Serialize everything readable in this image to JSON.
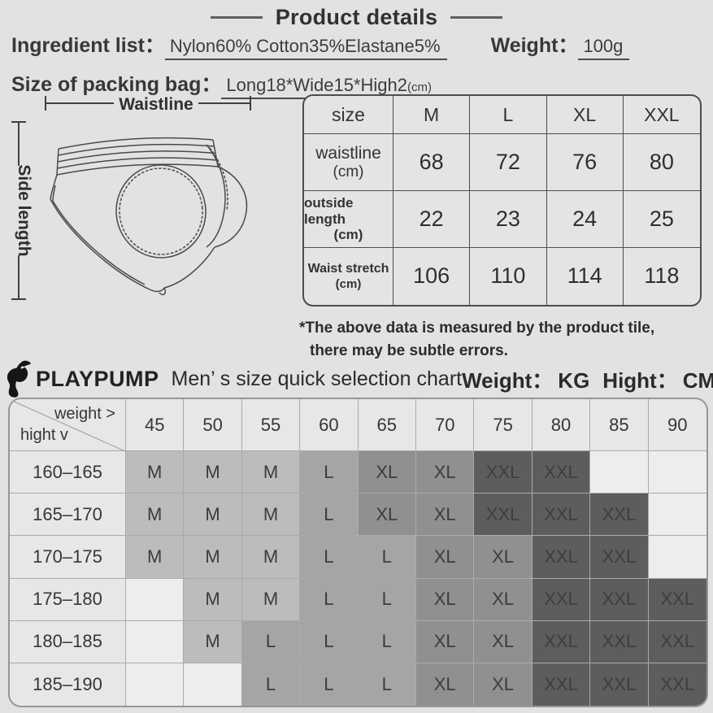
{
  "header": {
    "title": "Product details",
    "ingredient_label": "Ingredient list：",
    "ingredient_value": "Nylon60% Cotton35%Elastane5%",
    "weight_label": "Weight：",
    "weight_value": "100g",
    "packing_label": "Size of packing bag：",
    "packing_value": "Long18*Wide15*High2",
    "packing_unit": "(cm)"
  },
  "diagram": {
    "waistline_label": "Waistline",
    "side_length_label": "Side length"
  },
  "size_table": {
    "corner": "size",
    "columns": [
      "M",
      "L",
      "XL",
      "XXL"
    ],
    "rows": [
      {
        "label": "waistline",
        "unit": "(cm)",
        "values": [
          "68",
          "72",
          "76",
          "80"
        ]
      },
      {
        "label": "outside length",
        "unit": "(cm)",
        "values": [
          "22",
          "23",
          "24",
          "25"
        ]
      },
      {
        "label": "Waist stretch",
        "unit": "(cm)",
        "values": [
          "106",
          "110",
          "114",
          "118"
        ]
      }
    ]
  },
  "note": {
    "line1": "*The above data is measured by the product tile,",
    "line2": "there may be subtle errors."
  },
  "selection_header": {
    "logo_icon": "mascot-logo",
    "brand": "PLAYPUMP",
    "title": "Men’ s size quick selection chart",
    "weight_label": "Weight：",
    "weight_unit": "KG",
    "height_label": "Hight：",
    "height_unit": "CM"
  },
  "chart_data": {
    "type": "heatmap",
    "title": "PLAYPUMP Men's size quick selection chart",
    "xlabel": "weight (KG)",
    "ylabel": "hight (CM)",
    "corner_top": "weight >",
    "corner_bottom": "hight v",
    "weights_kg": [
      "45",
      "50",
      "55",
      "60",
      "65",
      "70",
      "75",
      "80",
      "85",
      "90"
    ],
    "heights_cm": [
      "160–165",
      "165–170",
      "170–175",
      "175–180",
      "180–185",
      "185–190"
    ],
    "cells": [
      [
        "M",
        "M",
        "M",
        "L",
        "XL",
        "XL",
        "XXL",
        "XXL",
        "",
        ""
      ],
      [
        "M",
        "M",
        "M",
        "L",
        "XL",
        "XL",
        "XXL",
        "XXL",
        "XXL",
        ""
      ],
      [
        "M",
        "M",
        "M",
        "L",
        "L",
        "XL",
        "XL",
        "XXL",
        "XXL",
        ""
      ],
      [
        "",
        "M",
        "M",
        "L",
        "L",
        "XL",
        "XL",
        "XXL",
        "XXL",
        "XXL"
      ],
      [
        "",
        "M",
        "L",
        "L",
        "L",
        "XL",
        "XL",
        "XXL",
        "XXL",
        "XXL"
      ],
      [
        "",
        "",
        "L",
        "L",
        "L",
        "XL",
        "XL",
        "XXL",
        "XXL",
        "XXL"
      ]
    ],
    "size_colors": {
      "M": "#bcbcbc",
      "L": "#a5a5a5",
      "XL": "#909090",
      "XXL": "#5d5d5d",
      "empty": "#ededed"
    }
  }
}
